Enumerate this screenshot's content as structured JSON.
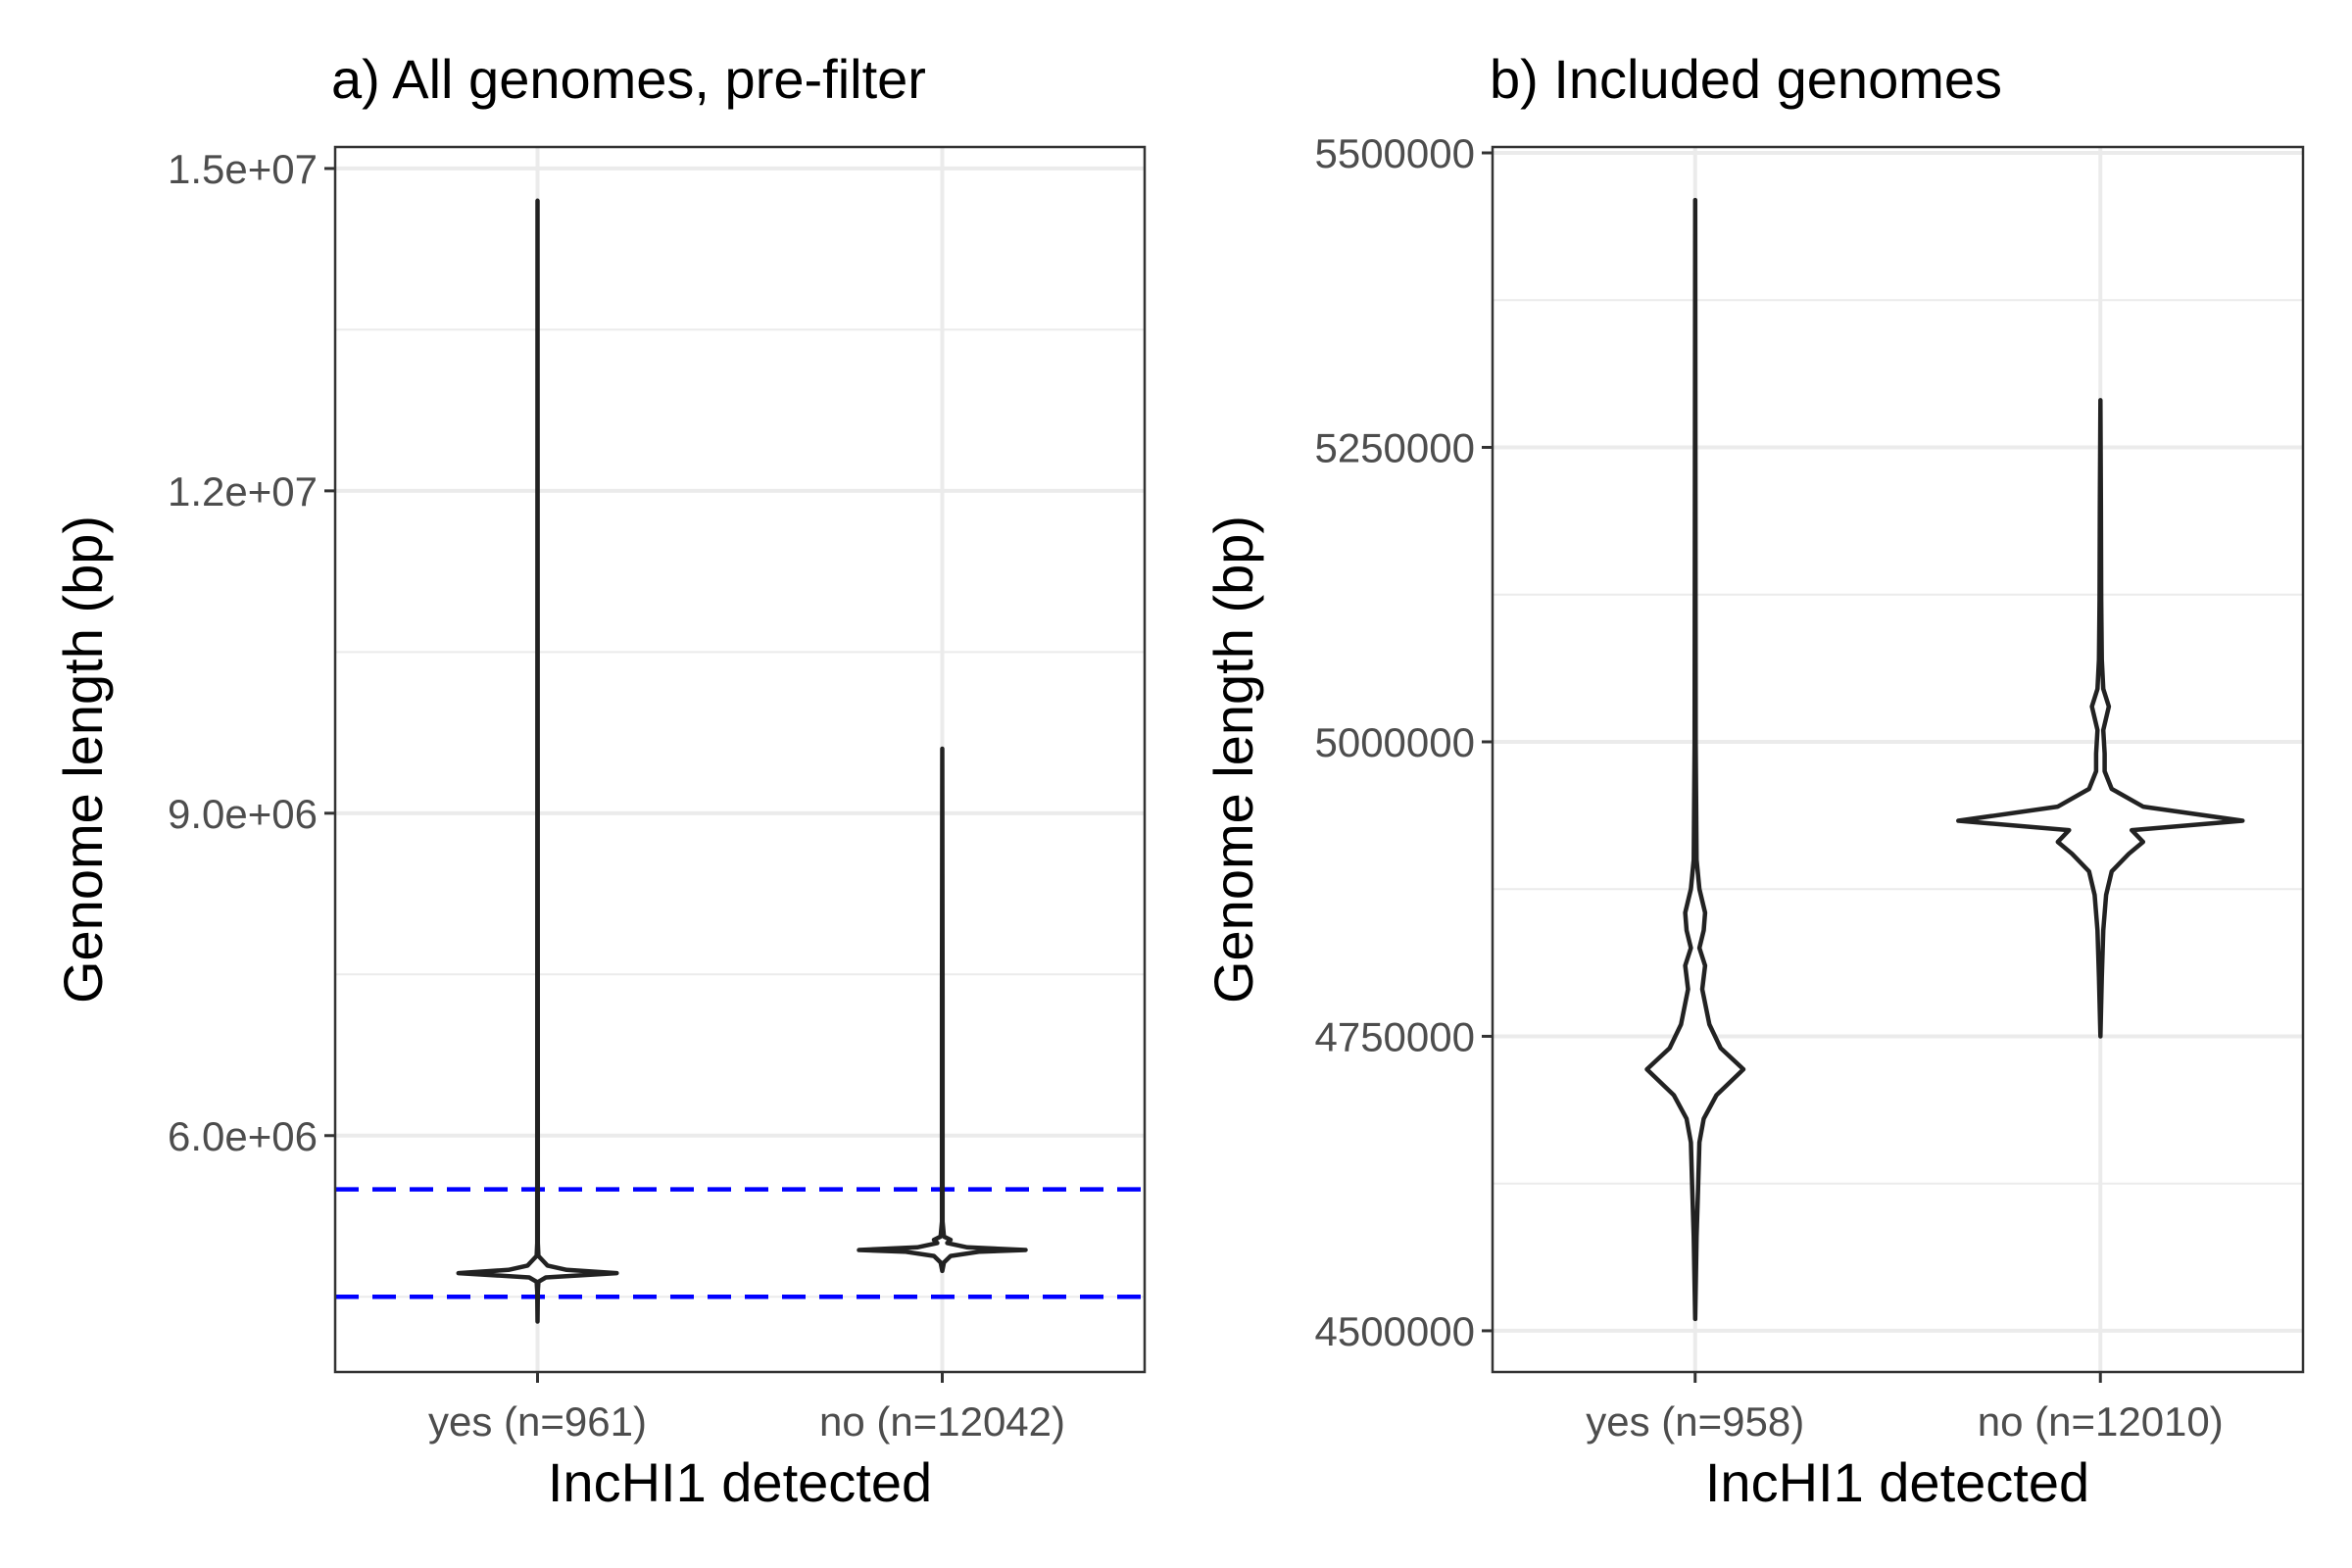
{
  "chart_data": [
    {
      "type": "violin",
      "title": "a) All genomes, pre-filter",
      "xlabel": "IncHI1 detected",
      "ylabel": "Genome length (bp)",
      "categories": [
        "yes (n=961)",
        "no (n=12042)"
      ],
      "ylim": [
        3800000,
        15200000
      ],
      "yticks": [
        6000000,
        9000000,
        12000000,
        15000000
      ],
      "ytick_labels": [
        "6.0e+06",
        "9.0e+06",
        "1.2e+07",
        "1.5e+07"
      ],
      "grid": true,
      "reference_lines": [
        {
          "y": 4500000,
          "color": "#0000ff",
          "style": "dashed"
        },
        {
          "y": 5500000,
          "color": "#0000ff",
          "style": "dashed"
        }
      ],
      "series": [
        {
          "category": "yes (n=961)",
          "min": 4270000,
          "max": 14700000,
          "profile": [
            [
              4270000,
              0.0
            ],
            [
              4550000,
              0.004
            ],
            [
              4640000,
              0.01
            ],
            [
              4680000,
              0.1
            ],
            [
              4720000,
              0.95
            ],
            [
              4750000,
              0.35
            ],
            [
              4790000,
              0.12
            ],
            [
              4840000,
              0.06
            ],
            [
              4880000,
              0.01
            ],
            [
              5000000,
              0.004
            ],
            [
              14700000,
              0.0
            ]
          ]
        },
        {
          "category": "no (n=12042)",
          "min": 4740000,
          "max": 9600000,
          "profile": [
            [
              4740000,
              0.0
            ],
            [
              4820000,
              0.02
            ],
            [
              4880000,
              0.1
            ],
            [
              4920000,
              0.45
            ],
            [
              4935000,
              1.0
            ],
            [
              4960000,
              0.3
            ],
            [
              5000000,
              0.06
            ],
            [
              5030000,
              0.1
            ],
            [
              5060000,
              0.02
            ],
            [
              5200000,
              0.004
            ],
            [
              7300000,
              0.003
            ],
            [
              9600000,
              0.0
            ]
          ]
        }
      ]
    },
    {
      "type": "violin",
      "title": "b) Included genomes",
      "xlabel": "IncHI1 detected",
      "ylabel": "Genome length (bp)",
      "categories": [
        "yes (n=958)",
        "no (n=12010)"
      ],
      "ylim": [
        4465000,
        5505000
      ],
      "yticks": [
        4500000,
        4750000,
        5000000,
        5250000,
        5500000
      ],
      "ytick_labels": [
        "4500000",
        "4750000",
        "5000000",
        "5250000",
        "5500000"
      ],
      "grid": true,
      "series": [
        {
          "category": "yes (n=958)",
          "min": 4510000,
          "max": 5460000,
          "profile": [
            [
              4510000,
              0.0
            ],
            [
              4580000,
              0.01
            ],
            [
              4620000,
              0.02
            ],
            [
              4660000,
              0.03
            ],
            [
              4680000,
              0.06
            ],
            [
              4700000,
              0.15
            ],
            [
              4722000,
              0.34
            ],
            [
              4740000,
              0.18
            ],
            [
              4760000,
              0.1
            ],
            [
              4790000,
              0.05
            ],
            [
              4810000,
              0.07
            ],
            [
              4825000,
              0.03
            ],
            [
              4840000,
              0.06
            ],
            [
              4855000,
              0.07
            ],
            [
              4875000,
              0.03
            ],
            [
              4900000,
              0.01
            ],
            [
              5000000,
              0.004
            ],
            [
              5460000,
              0.0
            ]
          ]
        },
        {
          "category": "no (n=12010)",
          "min": 4750000,
          "max": 5290000,
          "profile": [
            [
              4750000,
              0.0
            ],
            [
              4800000,
              0.01
            ],
            [
              4840000,
              0.02
            ],
            [
              4870000,
              0.04
            ],
            [
              4890000,
              0.08
            ],
            [
              4905000,
              0.2
            ],
            [
              4915000,
              0.3
            ],
            [
              4925000,
              0.22
            ],
            [
              4933000,
              1.0
            ],
            [
              4945000,
              0.3
            ],
            [
              4960000,
              0.08
            ],
            [
              4975000,
              0.03
            ],
            [
              4990000,
              0.03
            ],
            [
              5010000,
              0.02
            ],
            [
              5030000,
              0.06
            ],
            [
              5045000,
              0.02
            ],
            [
              5070000,
              0.01
            ],
            [
              5120000,
              0.006
            ],
            [
              5200000,
              0.004
            ],
            [
              5290000,
              0.0
            ]
          ]
        }
      ]
    }
  ]
}
